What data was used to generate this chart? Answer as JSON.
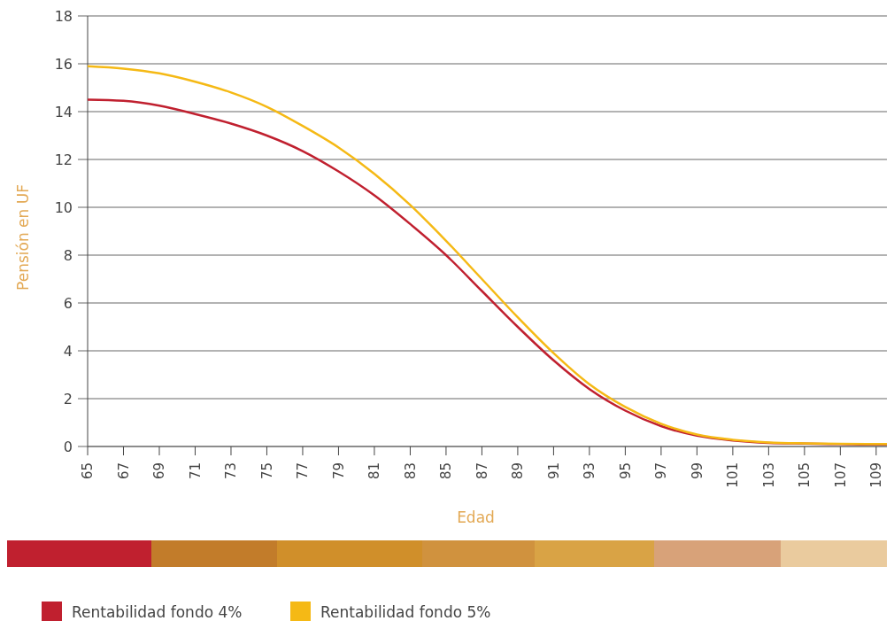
{
  "chart_data": {
    "type": "line",
    "xlabel": "Edad",
    "ylabel": "Pensión en UF",
    "x": [
      65,
      67,
      69,
      71,
      73,
      75,
      77,
      79,
      81,
      83,
      85,
      87,
      89,
      91,
      93,
      95,
      97,
      99,
      101,
      103,
      105,
      107,
      109,
      109.6
    ],
    "series": [
      {
        "name": "Rentabilidad fondo 4%",
        "color": "#c0202f",
        "values": [
          14.5,
          14.45,
          14.25,
          13.9,
          13.5,
          13.0,
          12.35,
          11.5,
          10.5,
          9.3,
          8.0,
          6.5,
          5.0,
          3.6,
          2.4,
          1.5,
          0.85,
          0.45,
          0.25,
          0.15,
          0.12,
          0.1,
          0.08,
          0.08
        ]
      },
      {
        "name": "Rentabilidad fondo 5%",
        "color": "#f5b915",
        "values": [
          15.9,
          15.8,
          15.6,
          15.25,
          14.8,
          14.2,
          13.4,
          12.5,
          11.4,
          10.1,
          8.6,
          7.0,
          5.4,
          3.9,
          2.6,
          1.65,
          0.95,
          0.5,
          0.28,
          0.17,
          0.13,
          0.11,
          0.1,
          0.1
        ]
      }
    ],
    "xlim": [
      65,
      109.6
    ],
    "xticks": [
      65,
      67,
      69,
      71,
      73,
      75,
      77,
      79,
      81,
      83,
      85,
      87,
      89,
      91,
      93,
      95,
      97,
      99,
      101,
      103,
      105,
      107,
      109
    ],
    "ylim": [
      0,
      18
    ],
    "yticks": [
      0,
      2,
      4,
      6,
      8,
      10,
      12,
      14,
      16,
      18
    ],
    "grid": "y",
    "legend": "bottom left",
    "marker": "none",
    "line_style": "solid"
  }
}
